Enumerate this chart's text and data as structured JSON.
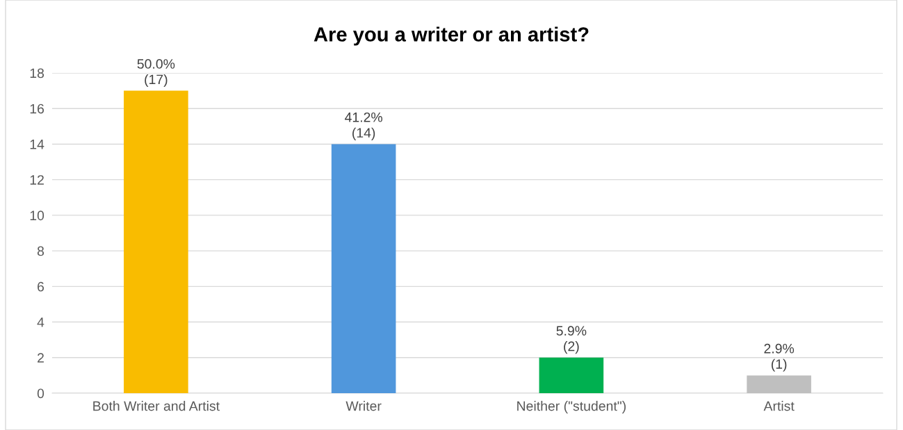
{
  "chart_data": {
    "type": "bar",
    "title": "Are you a writer or an artist?",
    "categories": [
      "Both Writer and Artist",
      "Writer",
      "Neither (\"student\")",
      "Artist"
    ],
    "values": [
      17,
      14,
      2,
      1
    ],
    "colors": [
      "#f9bc00",
      "#5097dc",
      "#00b050",
      "#bfbfbf"
    ],
    "value_labels": [
      "50.0%\n(17)",
      "41.2%\n(14)",
      "5.9%\n(2)",
      "2.9%\n(1)"
    ],
    "ylim": [
      0,
      18
    ],
    "yticks": [
      0,
      2,
      4,
      6,
      8,
      10,
      12,
      14,
      16,
      18
    ],
    "grid": "y",
    "legend": false
  }
}
